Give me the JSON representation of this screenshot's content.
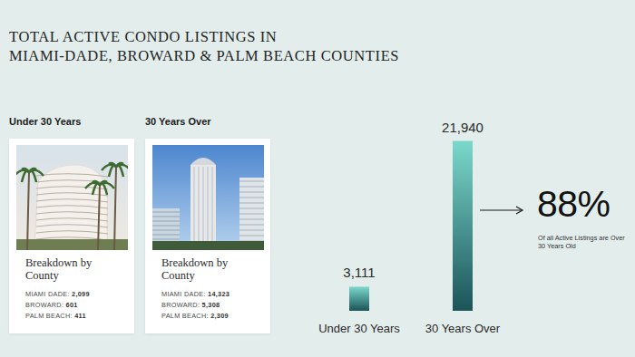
{
  "chart_data": {
    "type": "bar",
    "title": [
      "TOTAL ACTIVE CONDO LISTINGS IN",
      "MIAMI-DADE, BROWARD & PALM BEACH COUNTIES"
    ],
    "categories": [
      "Under 30 Years",
      "30 Years Over"
    ],
    "values": [
      3111,
      21940
    ],
    "value_labels": [
      "3,111",
      "21,940"
    ],
    "color": "#7ad8cb",
    "ylim": [
      0,
      22000
    ],
    "data_labels": true,
    "tick_labels": "x",
    "grid": false,
    "annotation": {
      "value": 88,
      "label": "88%",
      "text": "Of all Active Listings are Over 30 Years Old"
    },
    "breakdown": [
      {
        "heading": "Under 30 Years",
        "card_title": "Breakdown by County",
        "counties": [
          {
            "name": "MIAMI DADE:",
            "value": 2099,
            "label": "2,099"
          },
          {
            "name": "BROWARD:",
            "value": 601,
            "label": "601"
          },
          {
            "name": "PALM BEACH:",
            "value": 411,
            "label": "411"
          }
        ]
      },
      {
        "heading": "30 Years Over",
        "card_title": "Breakdown by County",
        "counties": [
          {
            "name": "MIAMI DADE:",
            "value": 14323,
            "label": "14,323"
          },
          {
            "name": "BROWARD:",
            "value": 5308,
            "label": "5,308"
          },
          {
            "name": "PALM BEACH:",
            "value": 2309,
            "label": "2,309"
          }
        ]
      }
    ]
  }
}
